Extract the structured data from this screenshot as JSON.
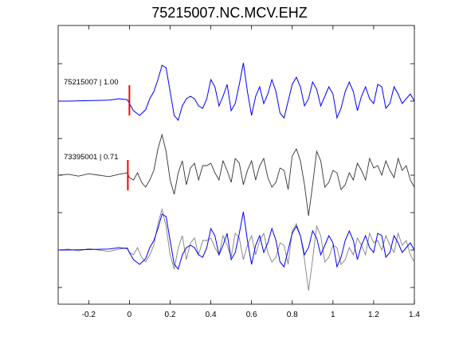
{
  "chart_data": {
    "type": "line",
    "title": "75215007.NC.MCV.EHZ",
    "xlabel": "",
    "ylabel": "",
    "xlim": [
      -0.35,
      1.4
    ],
    "x_ticks": [
      -0.2,
      0,
      0.2,
      0.4,
      0.6,
      0.8,
      1,
      1.2,
      1.4
    ],
    "x_tick_labels": [
      "-0.2",
      "0",
      "0.2",
      "0.4",
      "0.6",
      "0.8",
      "1",
      "1.2",
      "1.4"
    ],
    "grid": false,
    "pick_time": 0,
    "traces": [
      {
        "name": "75215007 | 1.00",
        "color": "#0000ff",
        "x": [
          -0.35,
          -0.3,
          -0.2,
          -0.1,
          -0.05,
          -0.01,
          0.0,
          0.02,
          0.05,
          0.08,
          0.1,
          0.12,
          0.14,
          0.16,
          0.18,
          0.2,
          0.22,
          0.24,
          0.26,
          0.28,
          0.3,
          0.32,
          0.34,
          0.36,
          0.38,
          0.4,
          0.42,
          0.44,
          0.46,
          0.48,
          0.5,
          0.52,
          0.54,
          0.56,
          0.58,
          0.6,
          0.62,
          0.64,
          0.66,
          0.68,
          0.7,
          0.72,
          0.74,
          0.76,
          0.78,
          0.8,
          0.82,
          0.84,
          0.86,
          0.88,
          0.9,
          0.92,
          0.94,
          0.96,
          0.98,
          1.0,
          1.02,
          1.04,
          1.06,
          1.08,
          1.1,
          1.12,
          1.14,
          1.16,
          1.18,
          1.2,
          1.22,
          1.24,
          1.26,
          1.28,
          1.3,
          1.32,
          1.34,
          1.36,
          1.38,
          1.4
        ],
        "y": [
          0,
          0,
          0.01,
          0.02,
          0.05,
          0.03,
          -0.05,
          -0.2,
          -0.3,
          -0.18,
          0.05,
          0.2,
          0.45,
          0.75,
          0.7,
          0.2,
          -0.3,
          -0.4,
          -0.1,
          0.05,
          0.1,
          0.05,
          -0.1,
          -0.15,
          0.05,
          0.45,
          0.3,
          -0.1,
          0.1,
          0.35,
          -0.2,
          -0.05,
          0.35,
          0.8,
          0.2,
          -0.3,
          0.1,
          0.3,
          -0.05,
          0.15,
          0.45,
          0.2,
          -0.25,
          -0.35,
          0.0,
          0.35,
          0.5,
          0.3,
          -0.1,
          0.05,
          0.4,
          0.25,
          -0.1,
          0.1,
          0.3,
          0.15,
          -0.35,
          -0.15,
          0.2,
          0.4,
          0.2,
          -0.2,
          0.1,
          0.3,
          0.05,
          -0.05,
          0.35,
          0.3,
          -0.15,
          -0.05,
          0.3,
          0.15,
          -0.05,
          0.05,
          0.15,
          0.0
        ]
      },
      {
        "name": "73395001 | 0.71",
        "color": "#000000",
        "x": [
          -0.35,
          -0.3,
          -0.25,
          -0.2,
          -0.15,
          -0.1,
          -0.05,
          -0.01,
          0.0,
          0.02,
          0.04,
          0.06,
          0.08,
          0.1,
          0.12,
          0.14,
          0.16,
          0.18,
          0.2,
          0.22,
          0.24,
          0.26,
          0.28,
          0.3,
          0.32,
          0.34,
          0.36,
          0.38,
          0.4,
          0.42,
          0.44,
          0.46,
          0.48,
          0.5,
          0.52,
          0.54,
          0.56,
          0.58,
          0.6,
          0.62,
          0.64,
          0.66,
          0.68,
          0.7,
          0.72,
          0.74,
          0.76,
          0.78,
          0.8,
          0.82,
          0.84,
          0.86,
          0.88,
          0.9,
          0.92,
          0.94,
          0.96,
          0.98,
          1.0,
          1.02,
          1.04,
          1.06,
          1.08,
          1.1,
          1.12,
          1.14,
          1.16,
          1.18,
          1.2,
          1.22,
          1.24,
          1.26,
          1.28,
          1.3,
          1.32,
          1.34,
          1.36,
          1.38,
          1.4
        ],
        "y": [
          0,
          0.02,
          -0.02,
          0.03,
          0.0,
          -0.03,
          0.02,
          0.05,
          -0.05,
          -0.1,
          0.05,
          -0.15,
          -0.25,
          -0.1,
          0.1,
          0.55,
          0.85,
          0.5,
          -0.1,
          -0.4,
          0.05,
          0.3,
          -0.2,
          0.15,
          0.25,
          -0.1,
          0.2,
          0.2,
          0.25,
          0.05,
          -0.1,
          0.3,
          0.1,
          -0.15,
          0.35,
          0.25,
          -0.2,
          0.1,
          0.3,
          -0.1,
          0.2,
          0.35,
          -0.05,
          -0.25,
          -0.15,
          0.15,
          0.1,
          -0.3,
          0.4,
          0.55,
          0.3,
          -0.2,
          -0.85,
          -0.2,
          0.5,
          0.3,
          -0.25,
          -0.15,
          0.1,
          0.05,
          -0.3,
          -0.2,
          0.05,
          -0.1,
          0.25,
          0.1,
          -0.1,
          0.35,
          0.15,
          0.2,
          0.0,
          0.3,
          0.1,
          -0.05,
          0.35,
          0.1,
          0.2,
          -0.1,
          -0.25
        ]
      }
    ]
  }
}
